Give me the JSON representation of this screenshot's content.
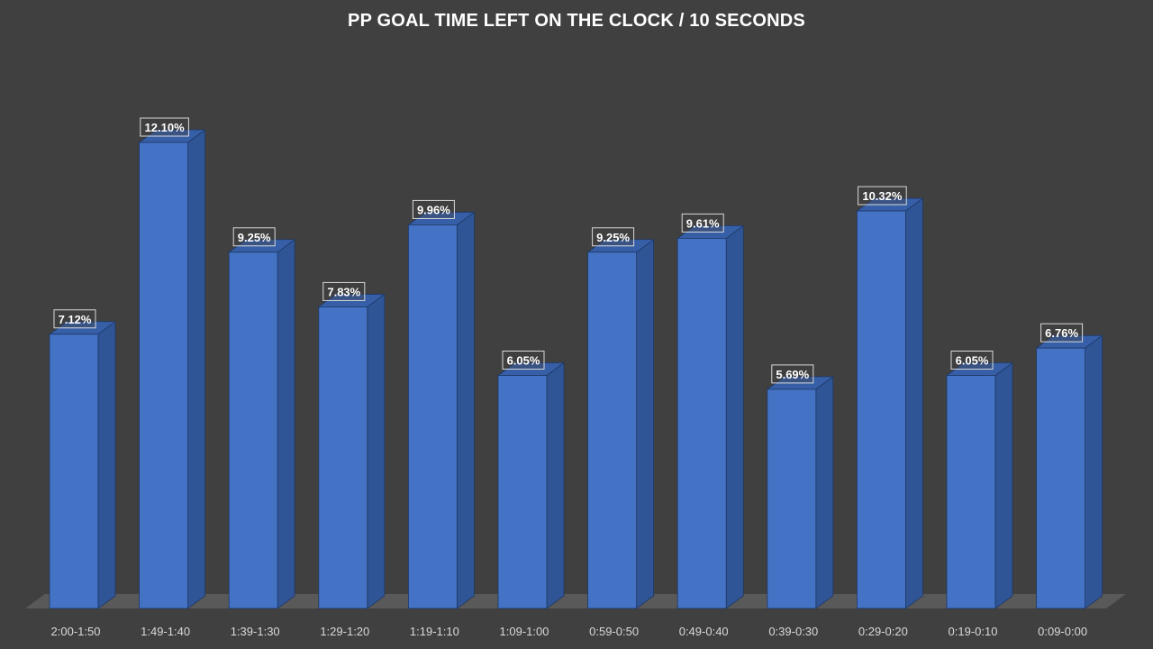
{
  "chart_data": {
    "type": "bar",
    "title": "PP GOAL TIME LEFT ON THE CLOCK / 10 SECONDS",
    "categories": [
      "2:00-1:50",
      "1:49-1:40",
      "1:39-1:30",
      "1:29-1:20",
      "1:19-1:10",
      "1:09-1:00",
      "0:59-0:50",
      "0:49-0:40",
      "0:39-0:30",
      "0:29-0:20",
      "0:19-0:10",
      "0:09-0:00"
    ],
    "values": [
      7.12,
      12.1,
      9.25,
      7.83,
      9.96,
      6.05,
      9.25,
      9.61,
      5.69,
      10.32,
      6.05,
      6.76
    ],
    "data_labels": [
      "7.12%",
      "12.10%",
      "9.25%",
      "7.83%",
      "9.96%",
      "6.05%",
      "9.25%",
      "9.61%",
      "5.69%",
      "10.32%",
      "6.05%",
      "6.76%"
    ],
    "xlabel": "",
    "ylabel": "",
    "ylim": [
      0,
      12.5
    ],
    "grid": false,
    "legend": "none",
    "style": "3d-column",
    "colors": {
      "background": "#404040",
      "bar_front": "#4472C4",
      "bar_side": "#2F5597",
      "bar_top": "#365FA8",
      "floor": "#595959",
      "title": "#FFFFFF",
      "tick_label": "#D9D9D9",
      "data_label_border": "#D9D9D9"
    }
  }
}
